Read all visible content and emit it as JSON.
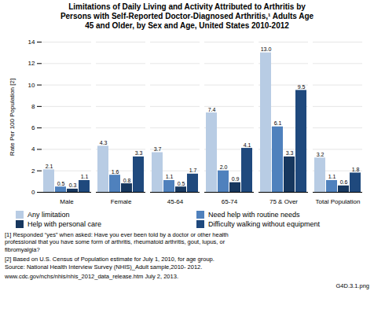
{
  "chart_data": {
    "type": "bar",
    "title": "Limitations of Daily Living and Activity Attributed to Arthritis by\nPersons with Self-Reported Doctor-Diagnosed Arthritis,¹ Adults Age\n45 and Older, by Sex and Age, United States 2010-2012",
    "ylabel": "Rate Per 100 Population [2]",
    "categories": [
      "Male",
      "Female",
      "45-64",
      "65-74",
      "75 & Over",
      "Total Population"
    ],
    "series": [
      {
        "name": "Any limitation",
        "color": "#b8cce4",
        "values": [
          2.1,
          4.3,
          3.7,
          7.4,
          13.0,
          3.2
        ],
        "value_labels": [
          "2.1",
          "4.3",
          "3.7",
          "7.4",
          "13.0",
          "3.2"
        ]
      },
      {
        "name": "Need help with routine needs",
        "color": "#4f81bd",
        "values": [
          0.5,
          1.6,
          1.1,
          2.0,
          6.1,
          1.1
        ],
        "value_labels": [
          "0.5",
          "1.6",
          "1.1",
          "2.0",
          "6.1",
          "1.1"
        ]
      },
      {
        "name": "Help with personal care",
        "color": "#17375e",
        "values": [
          0.3,
          0.8,
          0.5,
          0.9,
          3.3,
          0.6
        ],
        "value_labels": [
          "0.3",
          "0.8",
          "0.5",
          "0.9",
          "3.3",
          "0.6"
        ]
      },
      {
        "name": "Difficulty walking without equipment",
        "color": "#1f497d",
        "values": [
          1.1,
          3.3,
          1.7,
          4.1,
          9.5,
          1.8
        ],
        "value_labels": [
          "1.1",
          "3.3",
          "1.7",
          "4.1",
          "9.5",
          "1.8"
        ]
      }
    ],
    "ylim": [
      0,
      14
    ],
    "yticks": [
      0,
      2,
      4,
      6,
      8,
      10,
      12,
      14
    ],
    "grid": true,
    "data_labels": true,
    "legend": "bottom",
    "annotations": [
      "[1]   Responded “yes” when asked: Have you ever been told by a doctor or other health\nprofessional that you have some form of arthritis, rheumatoid arthritis, gout, lupus, or\nfibromyalgia?",
      "[2] Based on U.S. Census of Population estimate for July 1, 2010, for age group.\nSource: National Health Interview Survey (NHIS)_Adult sample,2010- 2012.",
      "www.cdc.gov/nchs/nhis/nhis_2012_data_release.htm  July 2, 2013.",
      "G4D.3.1.png"
    ]
  }
}
